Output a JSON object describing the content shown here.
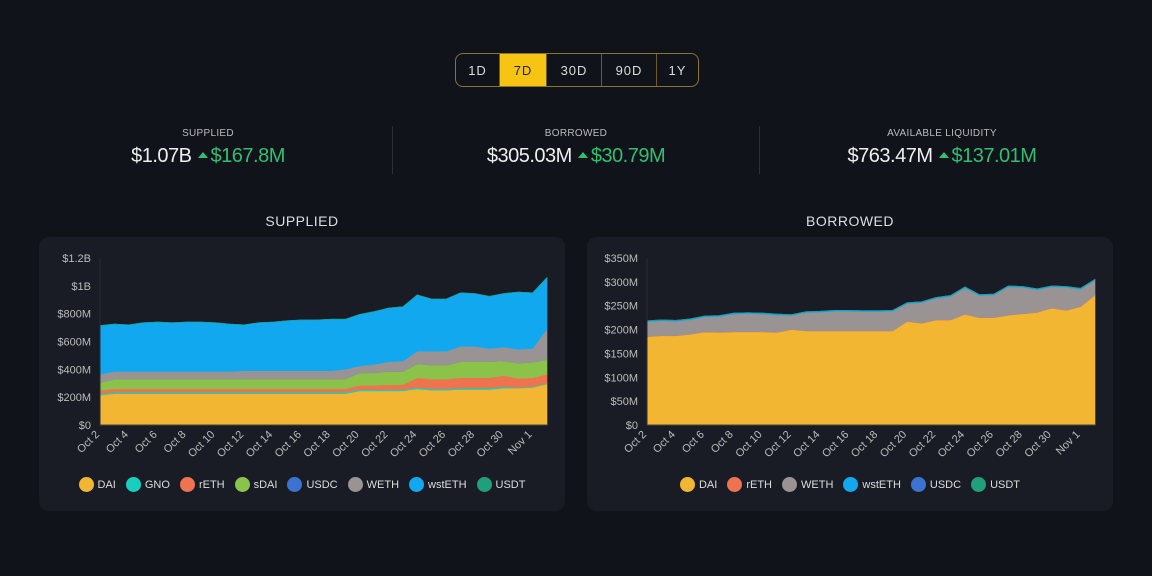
{
  "range_tabs": [
    {
      "label": "1D"
    },
    {
      "label": "7D",
      "active": true
    },
    {
      "label": "30D"
    },
    {
      "label": "90D"
    },
    {
      "label": "1Y"
    }
  ],
  "stats": [
    {
      "label": "SUPPLIED",
      "value": "$1.07B",
      "change": "$167.8M",
      "direction": "up"
    },
    {
      "label": "BORROWED",
      "value": "$305.03M",
      "change": "$30.79M",
      "direction": "up"
    },
    {
      "label": "AVAILABLE LIQUIDITY",
      "value": "$763.47M",
      "change": "$137.01M",
      "direction": "up"
    }
  ],
  "colors": {
    "accent": "#f8c414",
    "positive": "#2fbf71",
    "DAI": "#f2b632",
    "GNO": "#17cfc0",
    "rETH": "#f0734f",
    "sDAI": "#8bc34a",
    "USDC": "#3b73d0",
    "WETH": "#9a9393",
    "wstETH": "#12a8f0",
    "USDT": "#1fa07a"
  },
  "chart_data": [
    {
      "title": "SUPPLIED",
      "type": "area",
      "stacked": true,
      "unit": "$M",
      "x": [
        "Oct 2",
        "Oct 3",
        "Oct 4",
        "Oct 5",
        "Oct 6",
        "Oct 7",
        "Oct 8",
        "Oct 9",
        "Oct 10",
        "Oct 11",
        "Oct 12",
        "Oct 13",
        "Oct 14",
        "Oct 15",
        "Oct 16",
        "Oct 17",
        "Oct 18",
        "Oct 19",
        "Oct 20",
        "Oct 21",
        "Oct 22",
        "Oct 23",
        "Oct 24",
        "Oct 25",
        "Oct 26",
        "Oct 27",
        "Oct 28",
        "Oct 29",
        "Oct 30",
        "Oct 31",
        "Nov 1",
        "Nov 2"
      ],
      "x_tick_labels": [
        "Oct 2",
        "Oct 4",
        "Oct 6",
        "Oct 8",
        "Oct 10",
        "Oct 12",
        "Oct 14",
        "Oct 16",
        "Oct 18",
        "Oct 20",
        "Oct 22",
        "Oct 24",
        "Oct 26",
        "Oct 28",
        "Oct 30",
        "Nov 1"
      ],
      "y_tick_labels": [
        "$0",
        "$200M",
        "$400M",
        "$600M",
        "$800M",
        "$1B",
        "$1.2B"
      ],
      "ylim": [
        0,
        1200
      ],
      "legend": "bottom",
      "grid": false,
      "series": [
        {
          "name": "DAI",
          "values": [
            215,
            225,
            225,
            225,
            225,
            225,
            225,
            225,
            225,
            225,
            225,
            225,
            225,
            225,
            225,
            225,
            225,
            225,
            245,
            245,
            245,
            245,
            260,
            250,
            250,
            255,
            255,
            255,
            265,
            265,
            270,
            295
          ]
        },
        {
          "name": "GNO",
          "values": [
            10,
            10,
            10,
            10,
            10,
            10,
            10,
            10,
            10,
            10,
            10,
            10,
            10,
            10,
            10,
            10,
            10,
            10,
            10,
            10,
            10,
            10,
            10,
            10,
            10,
            10,
            10,
            10,
            10,
            5,
            5,
            5
          ]
        },
        {
          "name": "rETH",
          "values": [
            25,
            25,
            25,
            25,
            25,
            25,
            25,
            25,
            25,
            25,
            25,
            25,
            25,
            25,
            25,
            25,
            25,
            25,
            30,
            30,
            35,
            35,
            70,
            70,
            70,
            75,
            75,
            75,
            80,
            65,
            65,
            65
          ]
        },
        {
          "name": "sDAI",
          "values": [
            55,
            70,
            70,
            70,
            70,
            70,
            70,
            70,
            70,
            70,
            70,
            70,
            70,
            70,
            70,
            70,
            70,
            70,
            90,
            90,
            95,
            95,
            100,
            100,
            100,
            115,
            115,
            115,
            105,
            110,
            110,
            105
          ]
        },
        {
          "name": "USDC",
          "values": [
            0,
            0,
            0,
            0,
            0,
            0,
            0,
            0,
            0,
            0,
            0,
            0,
            0,
            0,
            0,
            0,
            0,
            0,
            0,
            0,
            0,
            0,
            0,
            0,
            0,
            0,
            0,
            0,
            0,
            0,
            0,
            0
          ]
        },
        {
          "name": "WETH",
          "values": [
            60,
            55,
            55,
            55,
            55,
            55,
            55,
            55,
            55,
            55,
            60,
            60,
            60,
            60,
            60,
            60,
            60,
            70,
            50,
            60,
            70,
            75,
            90,
            100,
            100,
            110,
            110,
            95,
            100,
            100,
            100,
            220
          ]
        },
        {
          "name": "wstETH",
          "values": [
            350,
            340,
            335,
            350,
            355,
            350,
            355,
            355,
            350,
            340,
            330,
            345,
            350,
            360,
            365,
            365,
            370,
            360,
            370,
            380,
            385,
            390,
            405,
            375,
            375,
            385,
            380,
            375,
            385,
            410,
            400,
            370
          ]
        },
        {
          "name": "USDT",
          "values": [
            0,
            0,
            0,
            0,
            0,
            0,
            0,
            0,
            0,
            0,
            0,
            0,
            0,
            0,
            0,
            0,
            0,
            0,
            0,
            0,
            0,
            0,
            0,
            0,
            0,
            0,
            0,
            0,
            0,
            0,
            0,
            0
          ]
        }
      ]
    },
    {
      "title": "BORROWED",
      "type": "area",
      "stacked": true,
      "unit": "$M",
      "x": [
        "Oct 2",
        "Oct 3",
        "Oct 4",
        "Oct 5",
        "Oct 6",
        "Oct 7",
        "Oct 8",
        "Oct 9",
        "Oct 10",
        "Oct 11",
        "Oct 12",
        "Oct 13",
        "Oct 14",
        "Oct 15",
        "Oct 16",
        "Oct 17",
        "Oct 18",
        "Oct 19",
        "Oct 20",
        "Oct 21",
        "Oct 22",
        "Oct 23",
        "Oct 24",
        "Oct 25",
        "Oct 26",
        "Oct 27",
        "Oct 28",
        "Oct 29",
        "Oct 30",
        "Oct 31",
        "Nov 1",
        "Nov 2"
      ],
      "x_tick_labels": [
        "Oct 2",
        "Oct 4",
        "Oct 6",
        "Oct 8",
        "Oct 10",
        "Oct 12",
        "Oct 14",
        "Oct 16",
        "Oct 18",
        "Oct 20",
        "Oct 22",
        "Oct 24",
        "Oct 26",
        "Oct 28",
        "Oct 30",
        "Nov 1"
      ],
      "y_tick_labels": [
        "$0",
        "$50M",
        "$100M",
        "$150M",
        "$200M",
        "$250M",
        "$300M",
        "$350M"
      ],
      "ylim": [
        0,
        350
      ],
      "legend": "bottom",
      "grid": false,
      "series": [
        {
          "name": "DAI",
          "values": [
            185,
            187,
            187,
            190,
            195,
            194,
            195,
            195,
            195,
            194,
            200,
            197,
            197,
            197,
            197,
            197,
            197,
            197,
            217,
            213,
            220,
            220,
            232,
            225,
            225,
            230,
            233,
            236,
            245,
            240,
            248,
            272
          ]
        },
        {
          "name": "rETH",
          "values": [
            0.5,
            0.5,
            0.5,
            0.5,
            0.5,
            0.5,
            0.5,
            0.5,
            0.5,
            0.5,
            0.5,
            0.5,
            0.5,
            0.5,
            0.5,
            0.5,
            0.5,
            0.5,
            0.5,
            0.5,
            0.5,
            0.5,
            0.5,
            0.5,
            0.5,
            0.5,
            0.5,
            0.5,
            0.5,
            0.5,
            0.5,
            0.5
          ]
        },
        {
          "name": "WETH",
          "values": [
            31,
            31,
            30,
            30,
            31,
            33,
            37,
            38,
            37,
            36,
            29,
            38,
            39,
            41,
            41,
            40,
            40,
            41,
            37,
            43,
            45,
            49,
            55,
            46,
            47,
            59,
            55,
            47,
            44,
            48,
            36,
            31
          ]
        },
        {
          "name": "wstETH",
          "values": [
            2,
            2,
            2,
            2,
            2,
            2,
            2,
            2,
            2,
            2,
            2,
            2,
            2,
            2,
            2,
            2,
            2,
            2,
            2,
            2,
            2,
            2,
            2,
            2,
            2,
            2,
            2,
            2,
            2,
            2,
            2,
            2
          ]
        },
        {
          "name": "USDC",
          "values": [
            0,
            0,
            0,
            0,
            0,
            0,
            0,
            0,
            0,
            0,
            0,
            0,
            0,
            0,
            0,
            0,
            0,
            0,
            0,
            0,
            0,
            0,
            0,
            0,
            0,
            0,
            0,
            0,
            0,
            0,
            0,
            0
          ]
        },
        {
          "name": "USDT",
          "values": [
            0,
            0,
            0,
            0,
            0,
            0,
            0,
            0,
            0,
            0,
            0,
            0,
            0,
            0,
            0,
            0,
            0,
            0,
            0,
            0,
            0,
            0,
            0,
            0,
            0,
            0,
            0,
            0,
            0,
            0,
            0,
            0
          ]
        }
      ]
    }
  ]
}
